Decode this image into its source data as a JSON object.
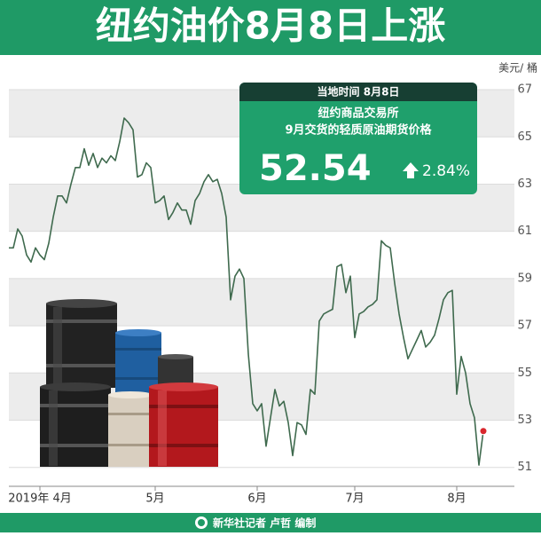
{
  "chart_data": {
    "type": "line",
    "title": "纽约油价8月8日上涨",
    "y_unit": "美元/ 桶",
    "source": "新华社记者 卢哲 编制",
    "callout": {
      "date": "当地时间 8月8日",
      "exchange": "纽约商品交易所",
      "contract": "9月交货的轻质原油期货价格",
      "price": "52.54",
      "change": "2.84%"
    },
    "color": "#3f6a4e",
    "highlight_color": "#d8262c",
    "ylim": [
      50.2,
      67.4
    ],
    "yticks": [
      51,
      53,
      55,
      57,
      59,
      61,
      63,
      65,
      67
    ],
    "grid_bands": true,
    "categories": [
      null,
      null,
      null,
      null,
      null,
      null,
      null,
      "2019年 4月",
      null,
      null,
      null,
      null,
      null,
      null,
      null,
      null,
      null,
      null,
      null,
      null,
      null,
      null,
      null,
      null,
      null,
      null,
      null,
      null,
      null,
      null,
      null,
      null,
      null,
      "5月",
      null,
      null,
      null,
      null,
      null,
      null,
      null,
      null,
      null,
      null,
      null,
      null,
      null,
      null,
      null,
      null,
      null,
      null,
      null,
      null,
      null,
      null,
      "6月",
      null,
      null,
      null,
      null,
      null,
      null,
      null,
      null,
      null,
      null,
      null,
      null,
      null,
      null,
      null,
      null,
      null,
      null,
      null,
      null,
      null,
      "7月",
      null,
      null,
      null,
      null,
      null,
      null,
      null,
      null,
      null,
      null,
      null,
      null,
      null,
      null,
      null,
      null,
      null,
      null,
      null,
      null,
      null,
      null,
      "8月",
      null,
      null,
      null,
      null,
      null,
      null
    ],
    "values": [
      60.3,
      60.3,
      61.1,
      60.8,
      60.0,
      59.7,
      60.3,
      60.0,
      59.8,
      60.5,
      61.6,
      62.5,
      62.5,
      62.2,
      63.0,
      63.7,
      63.7,
      64.5,
      63.8,
      64.3,
      63.7,
      64.1,
      63.9,
      64.2,
      64.0,
      64.8,
      65.8,
      65.6,
      65.3,
      63.3,
      63.4,
      63.9,
      63.7,
      62.2,
      62.3,
      62.5,
      61.5,
      61.8,
      62.2,
      61.9,
      61.9,
      61.3,
      62.3,
      62.6,
      63.1,
      63.4,
      63.1,
      63.2,
      62.6,
      61.6,
      58.1,
      59.1,
      59.4,
      59.0,
      55.8,
      53.7,
      53.4,
      53.7,
      51.9,
      53.1,
      54.3,
      53.6,
      53.8,
      52.9,
      51.5,
      52.9,
      52.8,
      52.4,
      54.3,
      54.1,
      57.2,
      57.5,
      57.6,
      57.7,
      59.5,
      59.6,
      58.4,
      59.1,
      56.5,
      57.5,
      57.6,
      57.8,
      57.9,
      58.1,
      60.6,
      60.4,
      60.3,
      58.8,
      57.5,
      56.5,
      55.6,
      56.0,
      56.4,
      56.8,
      56.1,
      56.3,
      56.6,
      57.3,
      58.1,
      58.4,
      58.5,
      54.1,
      55.7,
      55.0,
      53.7,
      53.1,
      51.1,
      52.54
    ]
  }
}
